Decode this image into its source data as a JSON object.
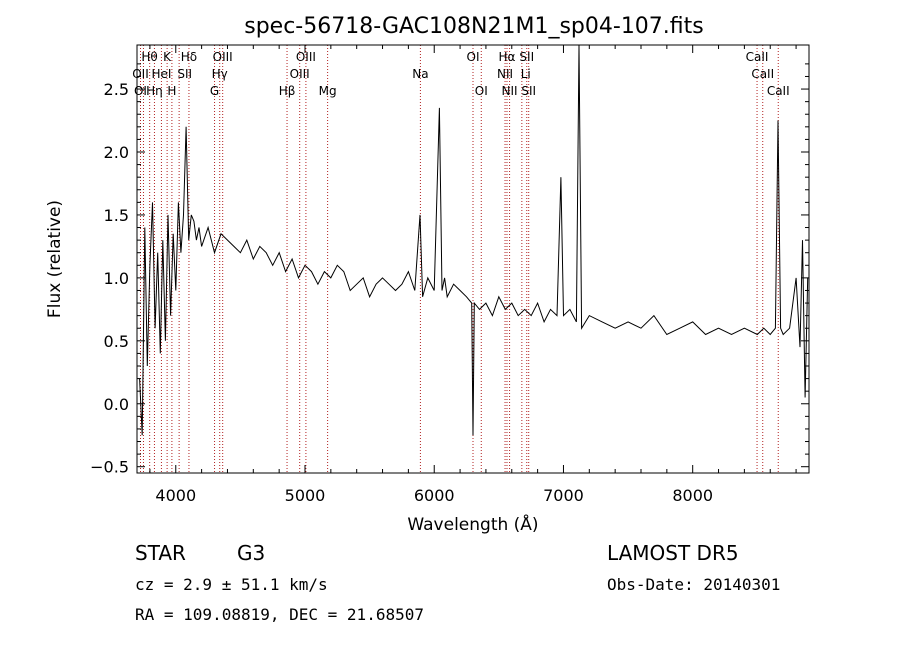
{
  "chart_data": {
    "type": "line",
    "title": "spec-56718-GAC108N21M1_sp04-107.fits",
    "xlabel": "Wavelength (Å)",
    "ylabel": "Flux (relative)",
    "xlim": [
      3700,
      8900
    ],
    "ylim": [
      -0.55,
      2.85
    ],
    "xticks": [
      4000,
      5000,
      6000,
      7000,
      8000
    ],
    "xtick_labels": [
      "4000",
      "5000",
      "6000",
      "7000",
      "8000"
    ],
    "yticks": [
      -0.5,
      0.0,
      0.5,
      1.0,
      1.5,
      2.0,
      2.5
    ],
    "ytick_labels": [
      "−0.5",
      "0.0",
      "0.5",
      "1.0",
      "1.5",
      "2.0",
      "2.5"
    ],
    "grid": false,
    "series": [
      {
        "line_color": "#000000",
        "x": [
          3720,
          3740,
          3760,
          3780,
          3800,
          3820,
          3840,
          3860,
          3880,
          3900,
          3920,
          3940,
          3960,
          3980,
          4000,
          4020,
          4040,
          4060,
          4080,
          4100,
          4120,
          4140,
          4160,
          4180,
          4200,
          4250,
          4300,
          4350,
          4400,
          4450,
          4500,
          4550,
          4600,
          4650,
          4700,
          4750,
          4800,
          4850,
          4900,
          4950,
          5000,
          5050,
          5100,
          5150,
          5200,
          5250,
          5300,
          5350,
          5400,
          5450,
          5500,
          5550,
          5600,
          5650,
          5700,
          5750,
          5800,
          5850,
          5890,
          5910,
          5950,
          6000,
          6040,
          6060,
          6080,
          6100,
          6150,
          6200,
          6250,
          6290,
          6300,
          6310,
          6350,
          6400,
          6450,
          6500,
          6550,
          6600,
          6650,
          6700,
          6750,
          6800,
          6850,
          6900,
          6950,
          6980,
          7000,
          7050,
          7100,
          7120,
          7140,
          7200,
          7300,
          7400,
          7500,
          7600,
          7700,
          7800,
          7900,
          8000,
          8100,
          8200,
          8300,
          8400,
          8500,
          8550,
          8600,
          8640,
          8660,
          8680,
          8700,
          8750,
          8800,
          8830,
          8850,
          8870,
          8890
        ],
        "values": [
          0.2,
          -0.25,
          1.4,
          0.3,
          1.1,
          1.6,
          0.6,
          1.2,
          0.4,
          1.3,
          0.5,
          1.5,
          0.7,
          1.35,
          0.9,
          1.6,
          1.2,
          1.5,
          2.2,
          1.3,
          1.5,
          1.45,
          1.3,
          1.4,
          1.25,
          1.4,
          1.2,
          1.35,
          1.3,
          1.25,
          1.2,
          1.3,
          1.15,
          1.25,
          1.2,
          1.1,
          1.2,
          1.05,
          1.15,
          1.0,
          1.1,
          1.05,
          0.95,
          1.05,
          1.0,
          1.1,
          1.05,
          0.9,
          0.95,
          1.0,
          0.85,
          0.95,
          1.0,
          0.95,
          0.9,
          0.95,
          1.05,
          0.9,
          1.5,
          0.85,
          1.0,
          0.9,
          2.35,
          0.9,
          1.0,
          0.85,
          0.95,
          0.9,
          0.85,
          0.8,
          -0.25,
          0.8,
          0.75,
          0.8,
          0.7,
          0.85,
          0.75,
          0.8,
          0.7,
          0.75,
          0.7,
          0.8,
          0.65,
          0.75,
          0.7,
          1.8,
          0.7,
          0.75,
          0.65,
          2.85,
          0.6,
          0.7,
          0.65,
          0.6,
          0.65,
          0.6,
          0.7,
          0.55,
          0.6,
          0.65,
          0.55,
          0.6,
          0.55,
          0.6,
          0.55,
          0.6,
          0.55,
          0.6,
          2.25,
          0.6,
          0.55,
          0.6,
          1.0,
          0.45,
          1.3,
          0.05,
          1.0
        ]
      }
    ],
    "reference_lines": {
      "color": "#b22222",
      "x": [
        3727,
        3750,
        3798,
        3835,
        3889,
        3933,
        3970,
        4026,
        4102,
        4300,
        4340,
        4363,
        4861,
        4959,
        5007,
        5175,
        5893,
        6300,
        6364,
        6548,
        6563,
        6583,
        6678,
        6716,
        6731,
        8498,
        8542,
        8662
      ]
    },
    "line_labels": [
      {
        "text": "Hθ",
        "x": 3797,
        "row": 1
      },
      {
        "text": "K",
        "x": 3933,
        "row": 1
      },
      {
        "text": "Hδ",
        "x": 4102,
        "row": 1
      },
      {
        "text": "OIII",
        "x": 4363,
        "row": 1
      },
      {
        "text": "OIII",
        "x": 5007,
        "row": 1
      },
      {
        "text": "OI",
        "x": 6300,
        "row": 1
      },
      {
        "text": "Hα",
        "x": 6563,
        "row": 1
      },
      {
        "text": "SII",
        "x": 6716,
        "row": 1
      },
      {
        "text": "CaII",
        "x": 8498,
        "row": 1
      },
      {
        "text": "OII",
        "x": 3727,
        "row": 2
      },
      {
        "text": "HeI",
        "x": 3889,
        "row": 2
      },
      {
        "text": "SII",
        "x": 4069,
        "row": 2
      },
      {
        "text": "Hγ",
        "x": 4340,
        "row": 2
      },
      {
        "text": "OIII",
        "x": 4959,
        "row": 2
      },
      {
        "text": "Na",
        "x": 5893,
        "row": 2
      },
      {
        "text": "NII",
        "x": 6548,
        "row": 2
      },
      {
        "text": "Li",
        "x": 6708,
        "row": 2
      },
      {
        "text": "CaII",
        "x": 8542,
        "row": 2
      },
      {
        "text": "OI",
        "x": 3727,
        "row": 3
      },
      {
        "text": "Hη",
        "x": 3835,
        "row": 3
      },
      {
        "text": "H",
        "x": 3970,
        "row": 3
      },
      {
        "text": "G",
        "x": 4300,
        "row": 3
      },
      {
        "text": "Hβ",
        "x": 4861,
        "row": 3
      },
      {
        "text": "Mg",
        "x": 5175,
        "row": 3
      },
      {
        "text": "OI",
        "x": 6364,
        "row": 3
      },
      {
        "text": "NII",
        "x": 6583,
        "row": 3
      },
      {
        "text": "SII",
        "x": 6731,
        "row": 3
      },
      {
        "text": "CaII",
        "x": 8662,
        "row": 3
      }
    ]
  },
  "info": {
    "object_class": "STAR",
    "subclass": "G3",
    "survey": "LAMOST DR5",
    "redshift": "cz = 2.9 ± 51.1 km/s",
    "obs_date": "Obs-Date: 20140301",
    "coords": "RA = 109.08819, DEC =  21.68507"
  }
}
